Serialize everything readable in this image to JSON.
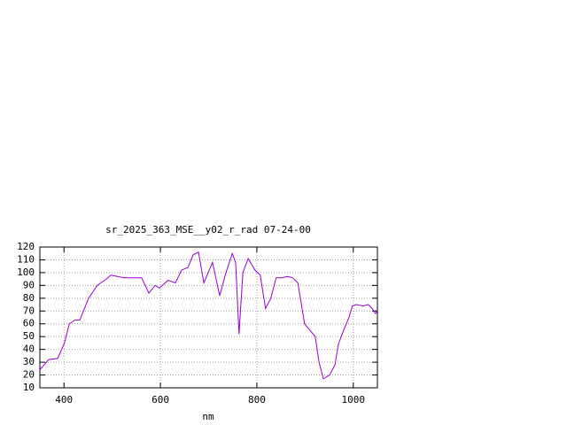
{
  "chart_data": {
    "type": "line",
    "title": "sr_2025_363_MSE__y02_r_rad 07-24-00",
    "x_label": "nm",
    "x": [
      350,
      368,
      387,
      401,
      411,
      423,
      433,
      451,
      469,
      488,
      497,
      525,
      543,
      561,
      576,
      589,
      598,
      616,
      631,
      644,
      657,
      668,
      679,
      690,
      708,
      723,
      736,
      749,
      756,
      763,
      771,
      782,
      796,
      807,
      818,
      829,
      840,
      851,
      864,
      874,
      885,
      899,
      910,
      921,
      929,
      938,
      951,
      962,
      969,
      980,
      991,
      998,
      1006,
      1021,
      1031,
      1039,
      1046,
      1050
    ],
    "values": [
      24,
      32,
      33,
      45,
      60,
      63,
      63,
      80,
      90,
      95,
      98,
      96,
      96,
      96,
      84,
      90,
      88,
      94,
      92,
      102,
      104,
      114,
      116,
      92,
      108,
      82,
      100,
      115,
      108,
      52,
      100,
      111,
      102,
      98,
      72,
      80,
      96,
      96,
      97,
      96,
      92,
      60,
      55,
      50,
      30,
      17,
      20,
      28,
      44,
      55,
      65,
      74,
      75,
      74,
      75,
      72,
      68,
      70
    ],
    "color": "#9400d3",
    "xlim": [
      350,
      1050
    ],
    "xticks": [
      400,
      600,
      800,
      1000
    ],
    "ylim": [
      10,
      120
    ],
    "yticks": [
      10,
      20,
      30,
      40,
      50,
      60,
      70,
      80,
      90,
      100,
      110,
      120
    ],
    "grid": true
  }
}
